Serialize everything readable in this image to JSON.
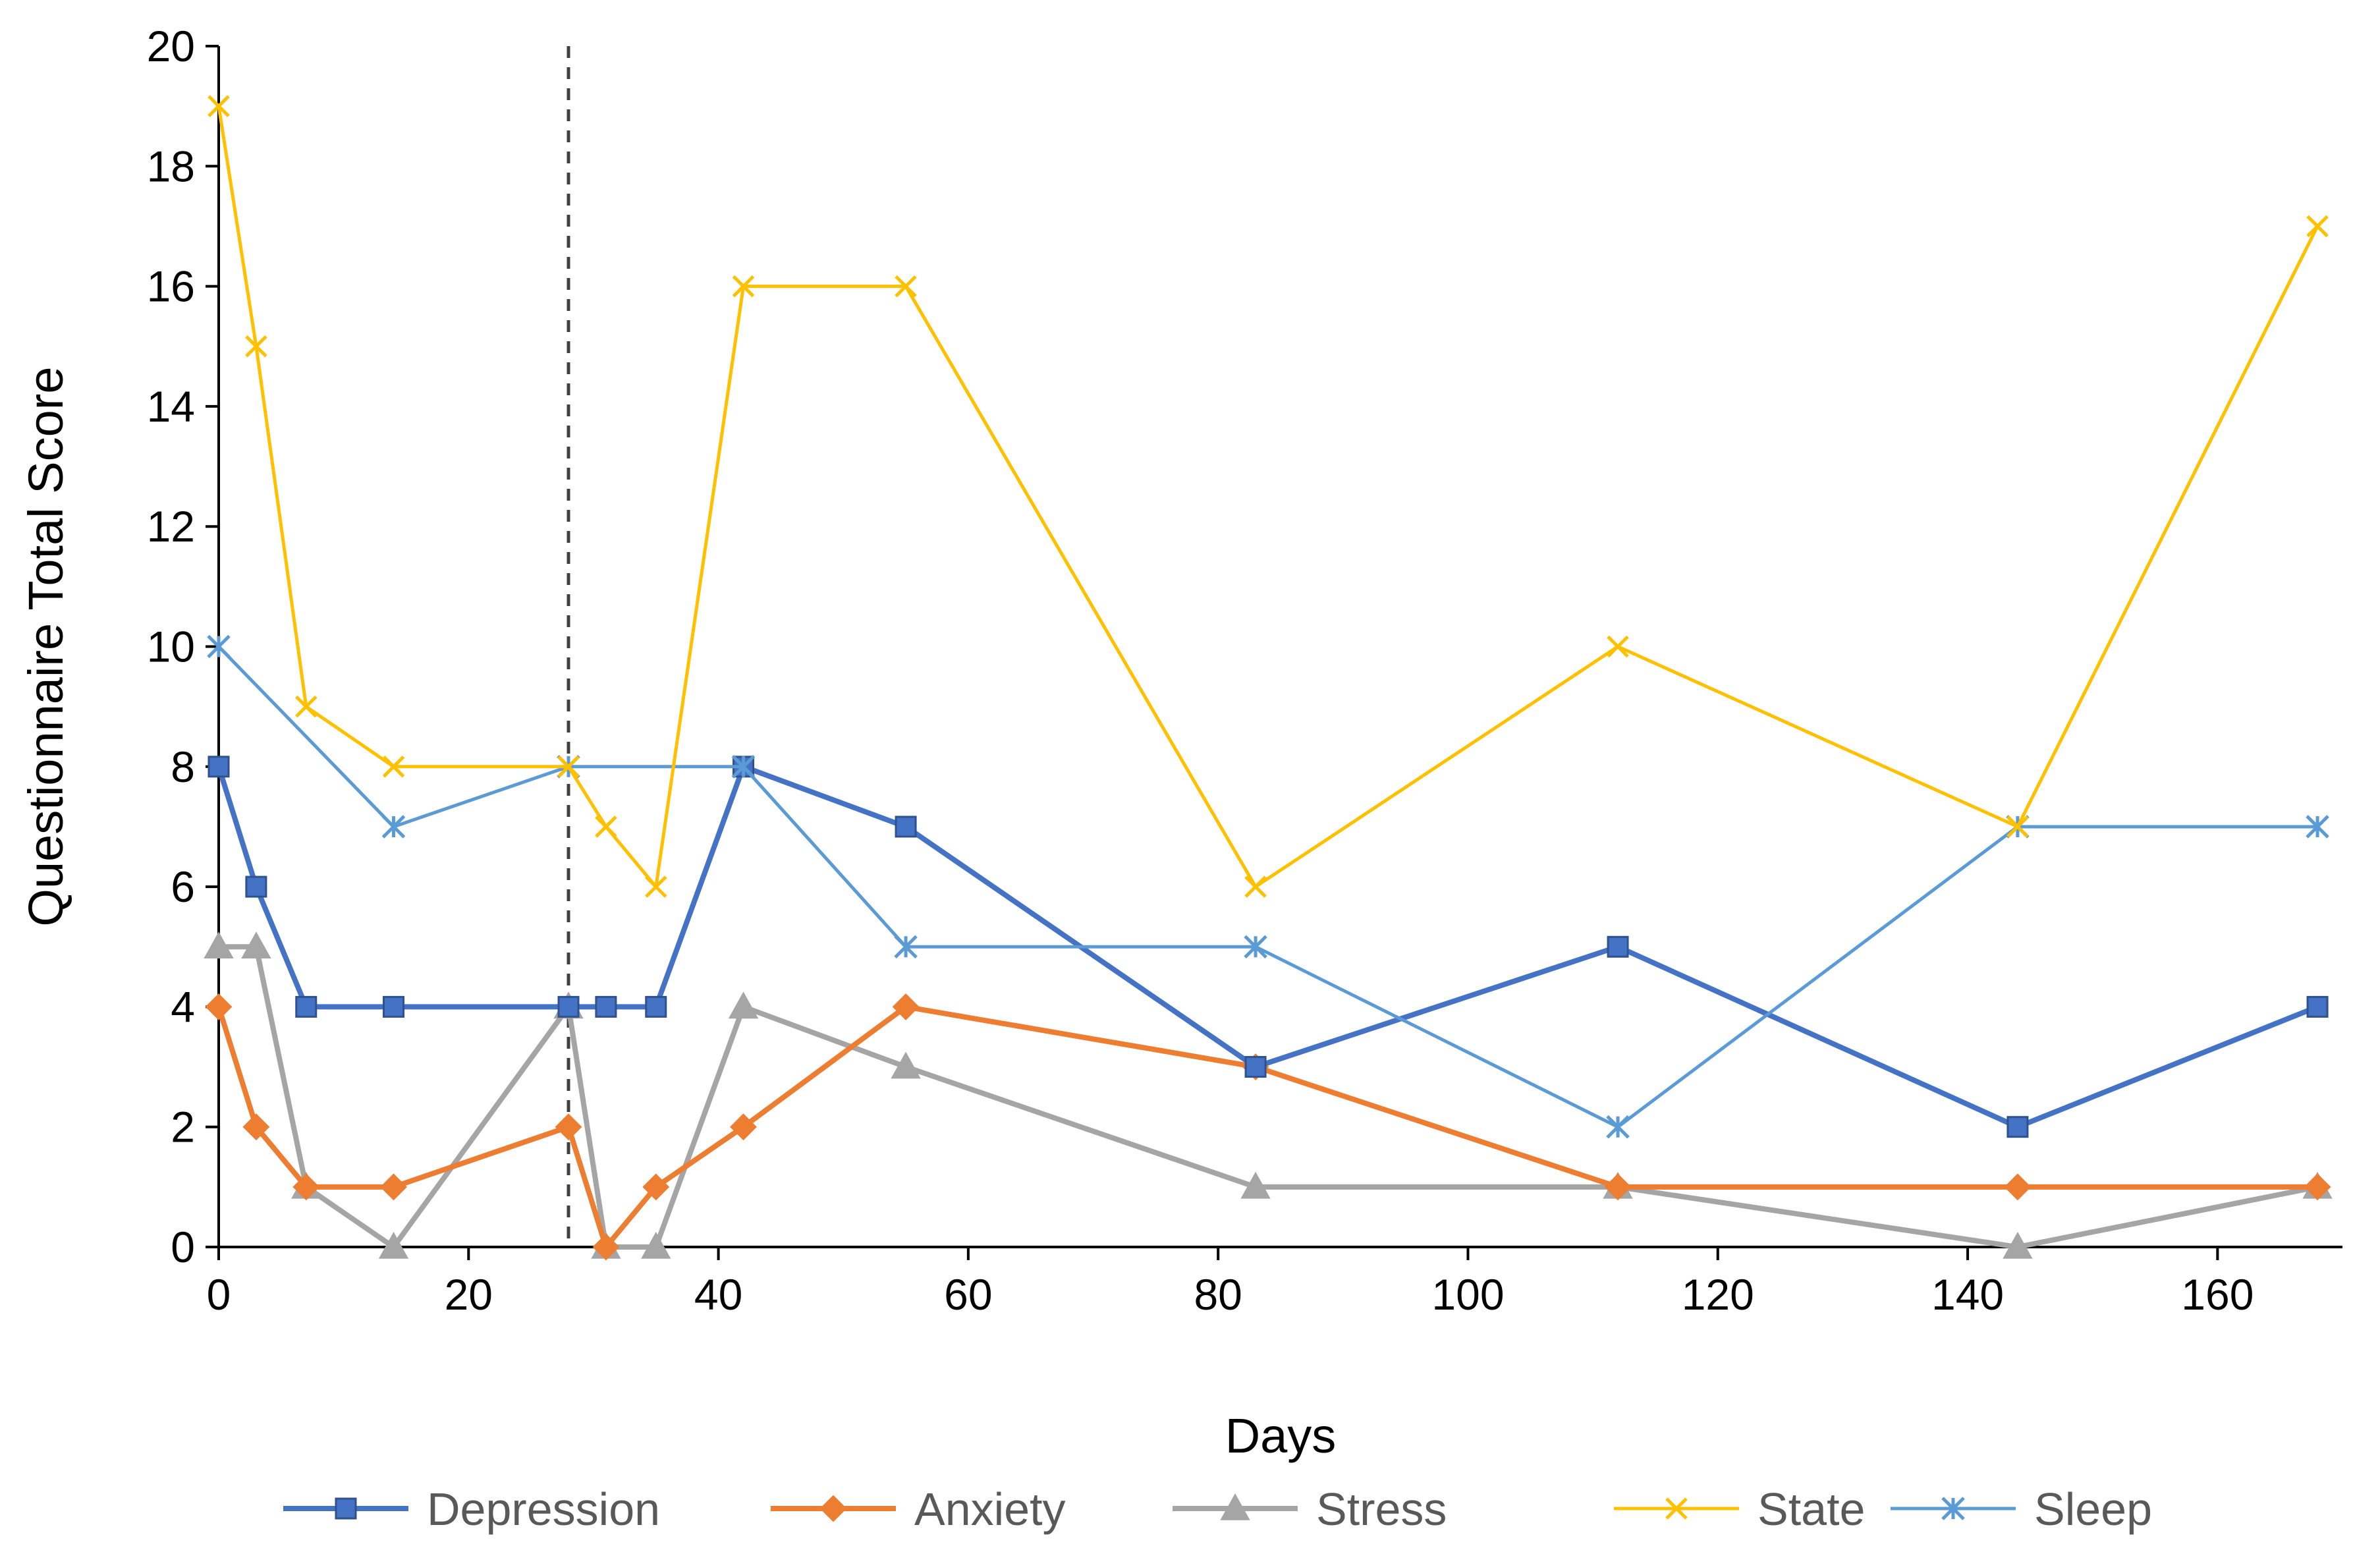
{
  "chart_data": {
    "type": "line",
    "xlabel": "Days",
    "ylabel": "Questionnaire Total Score",
    "xlim": [
      0,
      170
    ],
    "ylim": [
      0,
      20
    ],
    "x_ticks": [
      0,
      20,
      40,
      60,
      80,
      100,
      120,
      140,
      160
    ],
    "y_ticks": [
      0,
      2,
      4,
      6,
      8,
      10,
      12,
      14,
      16,
      18,
      20
    ],
    "vertical_marker_x": 28,
    "grid": false,
    "legend_position": "bottom",
    "series": [
      {
        "name": "Depression",
        "color": "#4472C4",
        "marker": "square",
        "points": [
          [
            0,
            8
          ],
          [
            3,
            6
          ],
          [
            7,
            4
          ],
          [
            14,
            4
          ],
          [
            28,
            4
          ],
          [
            31,
            4
          ],
          [
            35,
            4
          ],
          [
            42,
            8
          ],
          [
            55,
            7
          ],
          [
            83,
            3
          ],
          [
            112,
            5
          ],
          [
            144,
            2
          ],
          [
            168,
            4
          ]
        ]
      },
      {
        "name": "Anxiety",
        "color": "#ED7D31",
        "marker": "diamond",
        "points": [
          [
            0,
            4
          ],
          [
            3,
            2
          ],
          [
            7,
            1
          ],
          [
            14,
            1
          ],
          [
            28,
            2
          ],
          [
            31,
            0
          ],
          [
            35,
            1
          ],
          [
            42,
            2
          ],
          [
            55,
            4
          ],
          [
            83,
            3
          ],
          [
            112,
            1
          ],
          [
            144,
            1
          ],
          [
            168,
            1
          ]
        ]
      },
      {
        "name": "Stress",
        "color": "#A5A5A5",
        "marker": "triangle",
        "points": [
          [
            0,
            5
          ],
          [
            3,
            5
          ],
          [
            7,
            1
          ],
          [
            14,
            0
          ],
          [
            28,
            4
          ],
          [
            31,
            0
          ],
          [
            35,
            0
          ],
          [
            42,
            4
          ],
          [
            55,
            3
          ],
          [
            83,
            1
          ],
          [
            112,
            1
          ],
          [
            144,
            0
          ],
          [
            168,
            1
          ]
        ]
      },
      {
        "name": "State",
        "color": "#FFC000",
        "marker": "x",
        "points": [
          [
            0,
            19
          ],
          [
            3,
            15
          ],
          [
            7,
            9
          ],
          [
            14,
            8
          ],
          [
            28,
            8
          ],
          [
            31,
            7
          ],
          [
            35,
            6
          ],
          [
            42,
            16
          ],
          [
            55,
            16
          ],
          [
            83,
            6
          ],
          [
            112,
            10
          ],
          [
            144,
            7
          ],
          [
            168,
            17
          ]
        ]
      },
      {
        "name": "Sleep",
        "color": "#5B9BD5",
        "marker": "star",
        "points": [
          [
            0,
            10
          ],
          [
            14,
            7
          ],
          [
            28,
            8
          ],
          [
            42,
            8
          ],
          [
            55,
            5
          ],
          [
            83,
            5
          ],
          [
            112,
            2
          ],
          [
            144,
            7
          ],
          [
            168,
            7
          ]
        ]
      }
    ]
  }
}
